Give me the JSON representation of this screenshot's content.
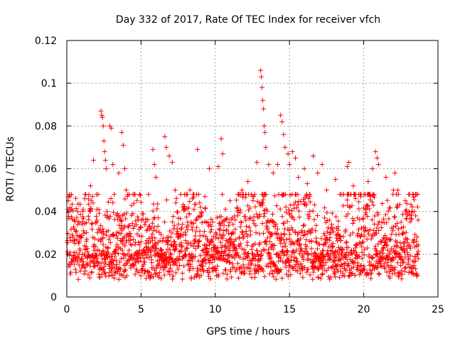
{
  "chart_data": {
    "type": "scatter",
    "title": "Day 332 of 2017, Rate Of TEC Index for receiver vfch",
    "xlabel": "GPS time / hours",
    "ylabel": "ROTI / TECUs",
    "xlim": [
      0,
      25
    ],
    "ylim": [
      0,
      0.12
    ],
    "xticks": [
      0,
      5,
      10,
      15,
      20,
      25
    ],
    "xtick_labels": [
      "0",
      "5",
      "10",
      "15",
      "20",
      "25"
    ],
    "yticks": [
      0,
      0.02,
      0.04,
      0.06,
      0.08,
      0.1,
      0.12
    ],
    "ytick_labels": [
      "0",
      "0.02",
      "0.04",
      "0.06",
      "0.08",
      "0.1",
      "0.12"
    ],
    "grid": true,
    "marker": "+",
    "color": "#ff0000",
    "series": [
      {
        "name": "ROTI",
        "points": [
          [
            0.1,
            0.045
          ],
          [
            0.3,
            0.041
          ],
          [
            0.5,
            0.036
          ],
          [
            1.2,
            0.046
          ],
          [
            1.6,
            0.052
          ],
          [
            1.8,
            0.064
          ],
          [
            2.0,
            0.048
          ],
          [
            2.3,
            0.087
          ],
          [
            2.35,
            0.085
          ],
          [
            2.4,
            0.084
          ],
          [
            2.45,
            0.08
          ],
          [
            2.5,
            0.073
          ],
          [
            2.55,
            0.068
          ],
          [
            2.6,
            0.064
          ],
          [
            2.65,
            0.06
          ],
          [
            2.9,
            0.08
          ],
          [
            3.0,
            0.079
          ],
          [
            3.1,
            0.062
          ],
          [
            3.5,
            0.058
          ],
          [
            3.7,
            0.077
          ],
          [
            3.8,
            0.071
          ],
          [
            3.9,
            0.06
          ],
          [
            4.0,
            0.05
          ],
          [
            5.5,
            0.048
          ],
          [
            5.8,
            0.069
          ],
          [
            5.9,
            0.062
          ],
          [
            6.0,
            0.056
          ],
          [
            6.6,
            0.075
          ],
          [
            6.7,
            0.07
          ],
          [
            6.9,
            0.066
          ],
          [
            7.1,
            0.063
          ],
          [
            7.3,
            0.05
          ],
          [
            8.3,
            0.05
          ],
          [
            8.8,
            0.069
          ],
          [
            9.3,
            0.047
          ],
          [
            9.6,
            0.06
          ],
          [
            10.2,
            0.061
          ],
          [
            10.4,
            0.074
          ],
          [
            10.5,
            0.067
          ],
          [
            11.0,
            0.045
          ],
          [
            11.8,
            0.05
          ],
          [
            12.2,
            0.054
          ],
          [
            12.8,
            0.063
          ],
          [
            13.05,
            0.106
          ],
          [
            13.1,
            0.103
          ],
          [
            13.15,
            0.098
          ],
          [
            13.2,
            0.092
          ],
          [
            13.25,
            0.088
          ],
          [
            13.3,
            0.08
          ],
          [
            13.35,
            0.077
          ],
          [
            13.4,
            0.07
          ],
          [
            13.6,
            0.062
          ],
          [
            13.9,
            0.058
          ],
          [
            14.2,
            0.062
          ],
          [
            14.4,
            0.085
          ],
          [
            14.5,
            0.082
          ],
          [
            14.6,
            0.076
          ],
          [
            14.7,
            0.07
          ],
          [
            14.9,
            0.067
          ],
          [
            15.0,
            0.062
          ],
          [
            15.2,
            0.068
          ],
          [
            15.4,
            0.065
          ],
          [
            15.6,
            0.056
          ],
          [
            16.0,
            0.06
          ],
          [
            16.2,
            0.053
          ],
          [
            16.6,
            0.066
          ],
          [
            16.9,
            0.058
          ],
          [
            17.2,
            0.062
          ],
          [
            17.5,
            0.05
          ],
          [
            18.1,
            0.055
          ],
          [
            18.4,
            0.048
          ],
          [
            18.9,
            0.061
          ],
          [
            19.0,
            0.063
          ],
          [
            19.3,
            0.052
          ],
          [
            19.8,
            0.047
          ],
          [
            20.3,
            0.054
          ],
          [
            20.6,
            0.06
          ],
          [
            20.8,
            0.068
          ],
          [
            20.9,
            0.065
          ],
          [
            21.0,
            0.062
          ],
          [
            21.5,
            0.056
          ],
          [
            22.0,
            0.05
          ],
          [
            22.1,
            0.058
          ],
          [
            22.3,
            0.05
          ],
          [
            22.8,
            0.045
          ],
          [
            23.4,
            0.04
          ]
        ]
      }
    ]
  }
}
